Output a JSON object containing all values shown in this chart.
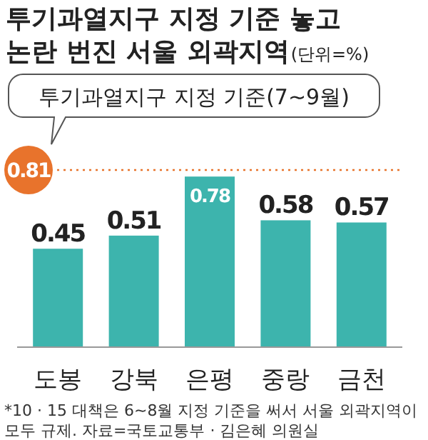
{
  "chart_data": {
    "type": "bar",
    "title": "투기과열지구 지정 기준 놓고 논란 번진 서울 외곽지역",
    "subtitle": "(단위=%)",
    "categories": [
      "도봉",
      "강북",
      "은평",
      "중랑",
      "금천"
    ],
    "values": [
      0.45,
      0.51,
      0.78,
      0.58,
      0.57
    ],
    "color": "#3db4ad",
    "data_labels": true,
    "ref_lines": [
      {
        "axis": "y",
        "value": 0.81,
        "label": "0.81",
        "color": "#e8732c",
        "line_style": "dotted"
      }
    ],
    "annotations": [
      {
        "text": "투기과열지구 지정 기준(7~9월)",
        "y": 0.81
      },
      "*10 · 15 대책은 6~8월 지정 기준을 써서 서울 외곽지역이 모두 규제. 자료=국토교통부 · 김은혜 의원실"
    ]
  }
}
